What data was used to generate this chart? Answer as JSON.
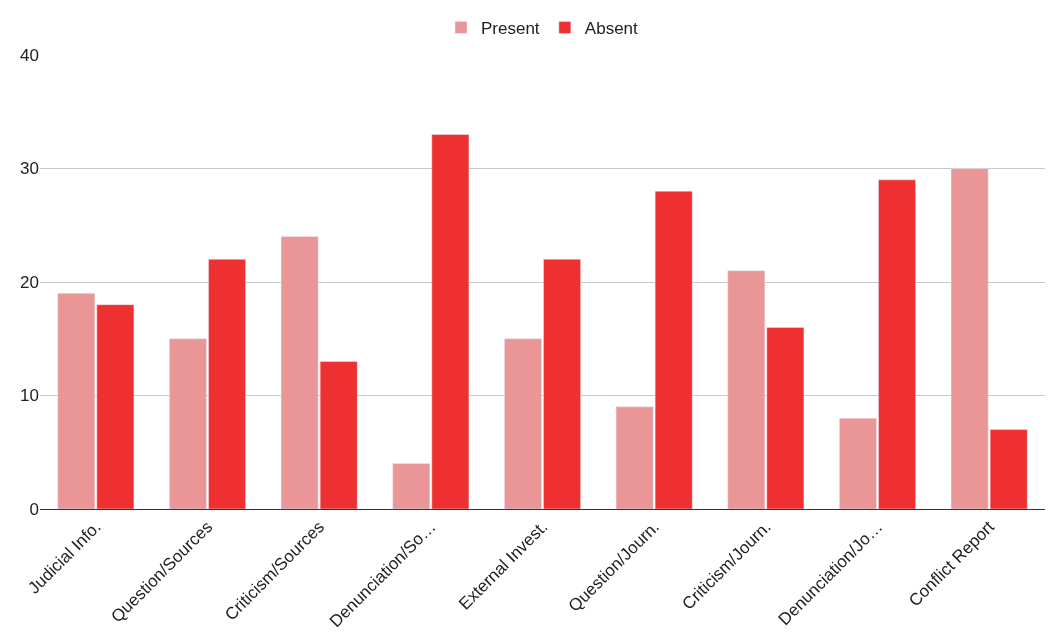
{
  "chart_data": {
    "type": "bar",
    "categories": [
      "Judicial Info.",
      "Question/Sources",
      "Criticism/Sources",
      "Denunciation/So…",
      "External Invest.",
      "Question/Journ.",
      "Criticism/Journ.",
      "Denunciation/Jo…",
      "Conflict Report"
    ],
    "series": [
      {
        "name": "Present",
        "color": "#ea9696",
        "values": [
          19,
          15,
          24,
          4,
          15,
          9,
          21,
          8,
          30
        ]
      },
      {
        "name": "Absent",
        "color": "#ee3030",
        "values": [
          18,
          22,
          13,
          33,
          22,
          28,
          16,
          29,
          7
        ]
      }
    ],
    "ylim": [
      0,
      40
    ],
    "yticks": [
      0,
      10,
      20,
      30,
      40
    ],
    "grid": "y",
    "legend": "top"
  }
}
